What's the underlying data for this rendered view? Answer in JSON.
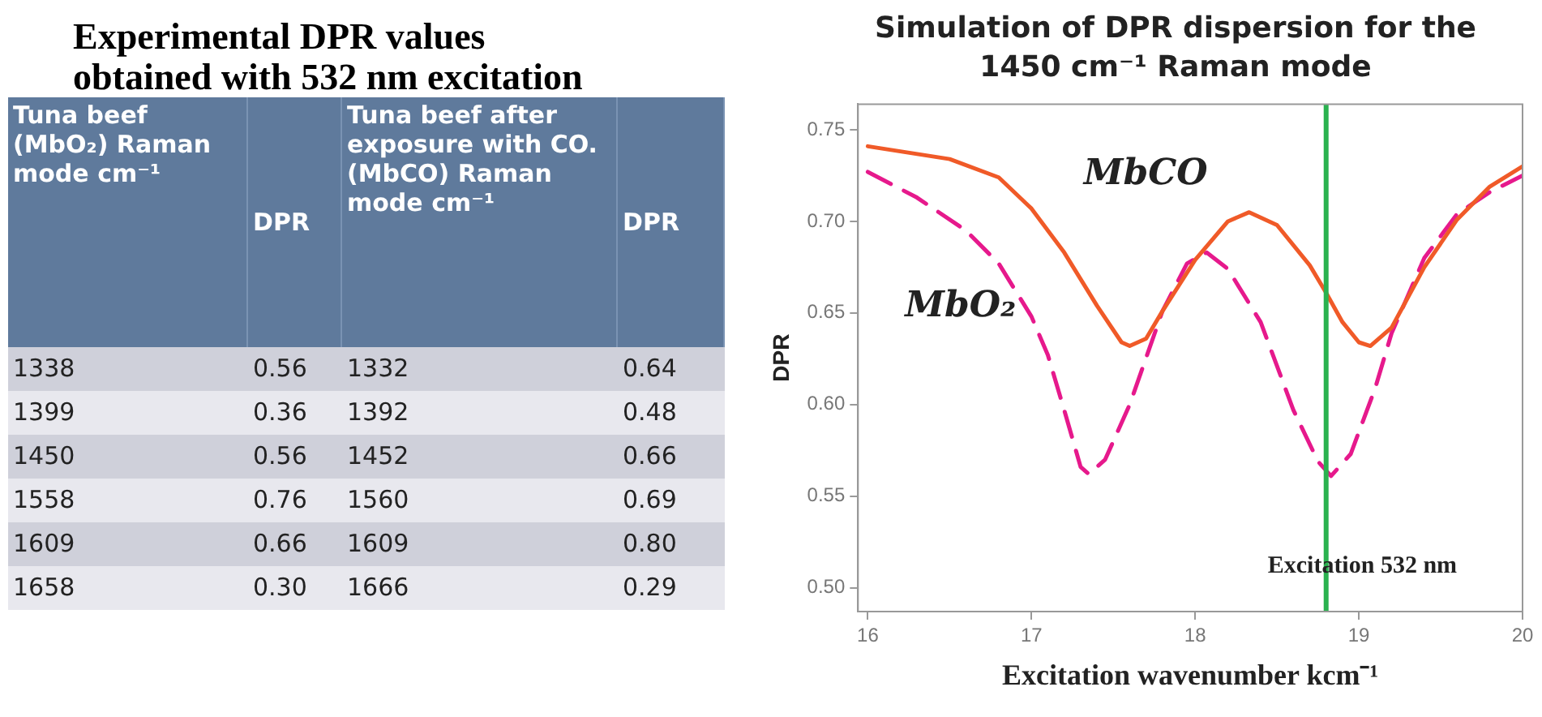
{
  "chart_data": [
    {
      "type": "other",
      "title": "Experimental DPR values obtained with 532 nm excitation",
      "annotations": [
        "Tuna beef (MbO₂) Raman mode cm⁻¹",
        "DPR",
        "Tuna beef after exposure with CO. (MbCO) Raman mode cm⁻¹",
        "DPR",
        "1338",
        "0.56",
        "1332",
        "0.64",
        "1399",
        "0.36",
        "1392",
        "0.48",
        "1450",
        "0.56",
        "1452",
        "0.66",
        "1558",
        "0.76",
        "1560",
        "0.69",
        "1609",
        "0.66",
        "1609",
        "0.80",
        "1658",
        "0.30",
        "1666",
        "0.29"
      ]
    },
    {
      "type": "line",
      "title": "Simulation of DPR dispersion for the 1450 cm⁻¹ Raman mode",
      "xlabel": "Excitation wavenumber kcm⁻¹",
      "ylabel": "DPR",
      "legend": false,
      "marker": "none",
      "xlim": [
        15.94,
        20
      ],
      "xticks": [
        16,
        17,
        18,
        19,
        20
      ],
      "ylim": [
        0.487,
        0.764
      ],
      "yticks": [
        {
          "value": 0.5,
          "label": "0.50"
        },
        {
          "value": 0.55,
          "label": "0.55"
        },
        {
          "value": 0.6,
          "label": "0.60"
        },
        {
          "value": 0.65,
          "label": "0.65"
        },
        {
          "value": 0.7,
          "label": "0.70"
        },
        {
          "value": 0.75,
          "label": "0.75"
        }
      ],
      "ref_lines": [
        {
          "axis": "x",
          "value": 18.8,
          "label": "Excitation 532 nm",
          "color": "#2ab24f"
        }
      ],
      "series": [
        {
          "name": "MbCO",
          "color": "#f05a28",
          "line_style": "solid",
          "x": [
            16,
            16.5,
            16.8,
            17,
            17.2,
            17.4,
            17.55,
            17.6,
            17.7,
            17.8,
            18,
            18.2,
            18.33,
            18.5,
            18.7,
            18.8,
            18.9,
            19,
            19.07,
            19.2,
            19.4,
            19.6,
            19.8,
            20
          ],
          "values": [
            0.741,
            0.734,
            0.724,
            0.707,
            0.683,
            0.654,
            0.634,
            0.632,
            0.636,
            0.651,
            0.679,
            0.7,
            0.705,
            0.698,
            0.676,
            0.661,
            0.645,
            0.634,
            0.632,
            0.642,
            0.675,
            0.701,
            0.719,
            0.73
          ]
        },
        {
          "name": "MbO₂",
          "color": "#e6198c",
          "line_style": "dashed",
          "x": [
            16,
            16.3,
            16.6,
            16.8,
            17,
            17.1,
            17.2,
            17.3,
            17.35,
            17.45,
            17.6,
            17.8,
            17.95,
            18.07,
            18.2,
            18.4,
            18.6,
            18.75,
            18.83,
            18.95,
            19.1,
            19.2,
            19.4,
            19.6,
            19.8,
            20
          ],
          "values": [
            0.727,
            0.713,
            0.695,
            0.677,
            0.648,
            0.627,
            0.597,
            0.566,
            0.562,
            0.57,
            0.6,
            0.651,
            0.677,
            0.683,
            0.674,
            0.645,
            0.597,
            0.569,
            0.561,
            0.573,
            0.609,
            0.639,
            0.68,
            0.704,
            0.716,
            0.725
          ]
        }
      ]
    }
  ]
}
